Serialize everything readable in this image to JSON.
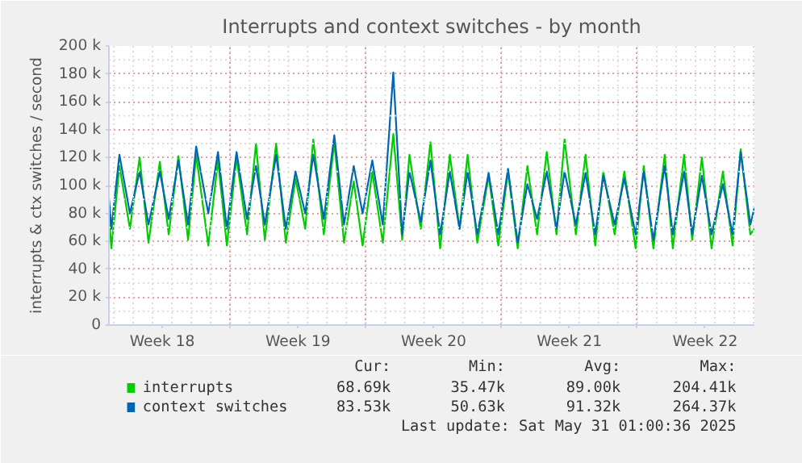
{
  "chart_data": {
    "type": "line",
    "title": "Interrupts and context switches - by month",
    "ylabel": "interrupts & ctx switches / second",
    "x": [
      "2025-04-27T18:00",
      "2025-04-27T21:00",
      "2025-04-28T07:00",
      "2025-04-28T20:00",
      "2025-04-29T08:00",
      "2025-04-29T19:00",
      "2025-04-30T09:00",
      "2025-04-30T20:00",
      "2025-05-01T08:00",
      "2025-05-01T20:00",
      "2025-05-02T06:00",
      "2025-05-02T21:00",
      "2025-05-03T09:00",
      "2025-05-03T20:00",
      "2025-05-04T08:00",
      "2025-05-04T21:00",
      "2025-05-05T08:00",
      "2025-05-05T19:00",
      "2025-05-06T09:00",
      "2025-05-06T21:00",
      "2025-05-07T09:00",
      "2025-05-07T21:00",
      "2025-05-08T07:00",
      "2025-05-08T20:00",
      "2025-05-09T09:00",
      "2025-05-09T21:00",
      "2025-05-10T09:00",
      "2025-05-10T20:00",
      "2025-05-11T08:00",
      "2025-05-11T21:00",
      "2025-05-12T10:00",
      "2025-05-12T21:00",
      "2025-05-13T06:00",
      "2025-05-13T20:00",
      "2025-05-14T08:00",
      "2025-05-14T20:00",
      "2025-05-15T08:00",
      "2025-05-15T20:00",
      "2025-05-16T06:00",
      "2025-05-16T18:00",
      "2025-05-17T08:00",
      "2025-05-17T20:00",
      "2025-05-18T08:00",
      "2025-05-18T20:00",
      "2025-05-19T08:00",
      "2025-05-19T20:00",
      "2025-05-20T08:00",
      "2025-05-20T20:00",
      "2025-05-21T06:00",
      "2025-05-21T20:00",
      "2025-05-22T08:00",
      "2025-05-22T20:00",
      "2025-05-23T06:00",
      "2025-05-23T20:00",
      "2025-05-24T08:00",
      "2025-05-24T22:00",
      "2025-05-25T08:00",
      "2025-05-25T20:00",
      "2025-05-26T10:00",
      "2025-05-26T20:00",
      "2025-05-27T10:00",
      "2025-05-27T20:00",
      "2025-05-28T08:00",
      "2025-05-28T20:00",
      "2025-05-29T10:00",
      "2025-05-29T22:00",
      "2025-05-30T08:00",
      "2025-05-30T20:00",
      "2025-05-31T01:00"
    ],
    "series": [
      {
        "name": "interrupts",
        "color": "#00cc00",
        "values": [
          80000,
          55000,
          114000,
          69000,
          120000,
          59000,
          117000,
          65000,
          121000,
          61000,
          122000,
          57000,
          118000,
          57000,
          120000,
          65000,
          130000,
          61000,
          130000,
          59000,
          105000,
          69000,
          133000,
          65000,
          131000,
          59000,
          103000,
          57000,
          110000,
          59000,
          137000,
          61000,
          122000,
          69000,
          131000,
          55000,
          122000,
          69000,
          122000,
          59000,
          107000,
          57000,
          110000,
          55000,
          114000,
          65000,
          124000,
          65000,
          133000,
          65000,
          122000,
          57000,
          110000,
          65000,
          110000,
          55000,
          114000,
          55000,
          122000,
          55000,
          122000,
          61000,
          120000,
          55000,
          110000,
          57000,
          126000,
          65000,
          69000
        ]
      },
      {
        "name": "context switches",
        "color": "#0066b3",
        "values": [
          91000,
          69000,
          122000,
          80000,
          110000,
          72000,
          110000,
          76000,
          118000,
          72000,
          128000,
          80000,
          124000,
          69000,
          124000,
          76000,
          114000,
          72000,
          122000,
          69000,
          110000,
          80000,
          122000,
          76000,
          136000,
          72000,
          114000,
          80000,
          118000,
          72000,
          181000,
          65000,
          110000,
          74000,
          118000,
          65000,
          110000,
          69000,
          110000,
          65000,
          109000,
          65000,
          112000,
          59000,
          101000,
          76000,
          110000,
          69000,
          110000,
          72000,
          109000,
          65000,
          107000,
          72000,
          105000,
          65000,
          110000,
          61000,
          114000,
          65000,
          110000,
          65000,
          107000,
          65000,
          101000,
          65000,
          124000,
          72000,
          84000
        ]
      }
    ],
    "xlim": [
      "2025-04-27T18:00",
      "2025-05-31T01:00"
    ],
    "xticks": [
      {
        "value": "2025-04-30T12:00",
        "label": "Week 18"
      },
      {
        "value": "2025-05-04",
        "label": null
      },
      {
        "value": "2025-05-07T12:00",
        "label": "Week 19"
      },
      {
        "value": "2025-05-11",
        "label": null
      },
      {
        "value": "2025-05-14T12:00",
        "label": "Week 20"
      },
      {
        "value": "2025-05-18",
        "label": null
      },
      {
        "value": "2025-05-21T12:00",
        "label": "Week 21"
      },
      {
        "value": "2025-05-25",
        "label": null
      },
      {
        "value": "2025-05-28T12:00",
        "label": "Week 22"
      }
    ],
    "ylim": [
      0,
      200000
    ],
    "yticks": [
      {
        "value": 0,
        "label": "0"
      },
      {
        "value": 20000,
        "label": "20 k"
      },
      {
        "value": 40000,
        "label": "40 k"
      },
      {
        "value": 60000,
        "label": "60 k"
      },
      {
        "value": 80000,
        "label": "80 k"
      },
      {
        "value": 100000,
        "label": "100 k"
      },
      {
        "value": 120000,
        "label": "120 k"
      },
      {
        "value": 140000,
        "label": "140 k"
      },
      {
        "value": 160000,
        "label": "160 k"
      },
      {
        "value": 180000,
        "label": "180 k"
      },
      {
        "value": 200000,
        "label": "200 k"
      }
    ],
    "grid": true,
    "legend": "bottom left",
    "annotations": [
      "Cur:",
      "Min:",
      "Avg:",
      "Max:",
      "68.69k",
      "35.47k",
      "89.00k",
      "204.41k",
      "83.53k",
      "50.63k",
      "91.32k",
      "264.37k",
      "Last update: Sat May 31 01:00:36 2025"
    ]
  }
}
